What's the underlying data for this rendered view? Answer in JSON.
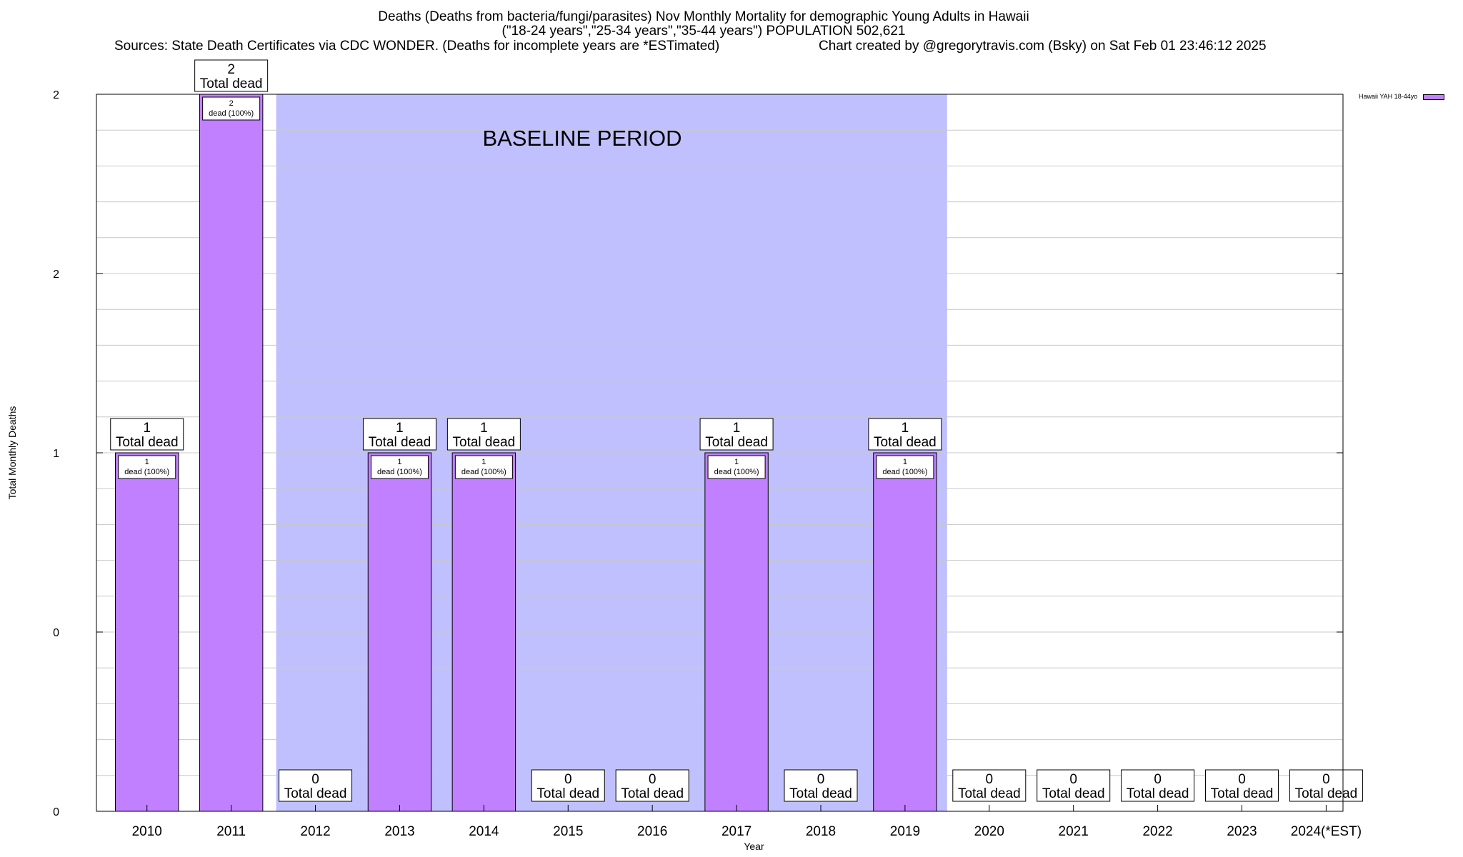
{
  "chart_data": {
    "type": "bar",
    "title_lines": [
      "Deaths (Deaths from bacteria/fungi/parasites) Nov Monthly Mortality for demographic Young Adults in Hawaii",
      "(\"18-24 years\",\"25-34 years\",\"35-44 years\") POPULATION 502,621"
    ],
    "sources": "Sources: State Death Certificates via CDC WONDER. (Deaths for incomplete years are *ESTimated)",
    "credit": "Chart created by @gregorytravis.com (Bsky) on Sat Feb 01 23:46:12 2025",
    "xlabel": "Year",
    "ylabel": "Total Monthly Deaths",
    "ylim": [
      0,
      2
    ],
    "y_tick_labels": [
      "0",
      "0",
      "1",
      "2",
      "2"
    ],
    "grid": true,
    "categories": [
      "2010",
      "2011",
      "2012",
      "2013",
      "2014",
      "2015",
      "2016",
      "2017",
      "2018",
      "2019",
      "2020",
      "2021",
      "2022",
      "2023",
      "2024(*EST)"
    ],
    "series": [
      {
        "name": "Hawaii YAH 18-44yo",
        "values": [
          1,
          2,
          0,
          1,
          1,
          0,
          0,
          1,
          0,
          1,
          0,
          0,
          0,
          0,
          0
        ]
      }
    ],
    "total_label_suffix": "Total dead",
    "inner_label_suffix": "dead (100%)",
    "baseline": {
      "label": "BASELINE PERIOD",
      "start": "2012",
      "end": "2019"
    },
    "legend_position": "top-right",
    "colors": {
      "bar": "#c080ff",
      "baseline": "#c0c0ff",
      "grid": "#c8c8c8"
    }
  }
}
